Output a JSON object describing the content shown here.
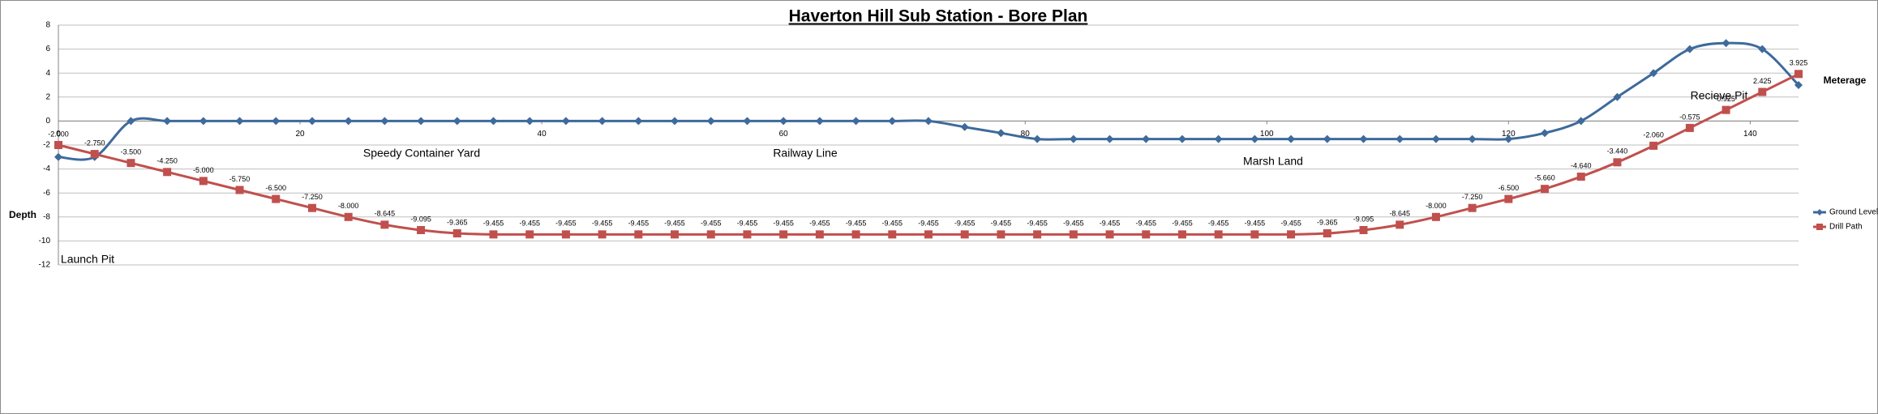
{
  "chart_data": {
    "type": "line",
    "title": "Haverton Hill Sub Station - Bore Plan",
    "y_label": "Depth",
    "x_label": "Meterage",
    "annotations": [
      "Speedy Container Yard",
      "Railway Line",
      "Marsh Land",
      "Recieve Pit",
      "Launch Pit"
    ],
    "x": [
      0,
      3,
      6,
      9,
      12,
      15,
      18,
      21,
      24,
      27,
      30,
      33,
      36,
      39,
      42,
      45,
      48,
      51,
      54,
      57,
      60,
      63,
      66,
      69,
      72,
      75,
      78,
      81,
      84,
      87,
      90,
      93,
      96,
      99,
      102,
      105,
      108,
      111,
      114,
      117,
      120,
      123,
      126,
      129,
      132,
      135,
      138,
      141,
      144
    ],
    "series": [
      {
        "name": "Ground Level",
        "color": "#3e6a9c",
        "marker": "diamond",
        "values": [
          -3,
          -3,
          0,
          0,
          0,
          0,
          0,
          0,
          0,
          0,
          0,
          0,
          0,
          0,
          0,
          0,
          0,
          0,
          0,
          0,
          0,
          0,
          0,
          0,
          0,
          -0.5,
          -1,
          -1.5,
          -1.5,
          -1.5,
          -1.5,
          -1.5,
          -1.5,
          -1.5,
          -1.5,
          -1.5,
          -1.5,
          -1.5,
          -1.5,
          -1.5,
          -1.5,
          -1,
          0,
          2,
          4,
          6,
          6.5,
          6,
          3
        ]
      },
      {
        "name": "Drill Path",
        "color": "#c0504d",
        "marker": "square",
        "values": [
          -2,
          -2.75,
          -3.5,
          -4.25,
          -5,
          -5.75,
          -6.5,
          -7.25,
          -8,
          -8.645,
          -9.095,
          -9.365,
          -9.455,
          -9.455,
          -9.455,
          -9.455,
          -9.455,
          -9.455,
          -9.455,
          -9.455,
          -9.455,
          -9.455,
          -9.455,
          -9.455,
          -9.455,
          -9.455,
          -9.455,
          -9.455,
          -9.455,
          -9.455,
          -9.455,
          -9.455,
          -9.455,
          -9.455,
          -9.455,
          -9.365,
          -9.095,
          -8.645,
          -8,
          -7.25,
          -6.5,
          -5.66,
          -4.64,
          -3.44,
          -2.06,
          -0.575,
          0.925,
          2.425,
          3.925
        ],
        "value_labels": [
          "-2.000",
          "-2.750",
          "-3.500",
          "-4.250",
          "-5.000",
          "-5.750",
          "-6.500",
          "-7.250",
          "-8.000",
          "-8.645",
          "-9.095",
          "-9.365",
          "-9.455",
          "-9.455",
          "-9.455",
          "-9.455",
          "-9.455",
          "-9.455",
          "-9.455",
          "-9.455",
          "-9.455",
          "-9.455",
          "-9.455",
          "-9.455",
          "-9.455",
          "-9.455",
          "-9.455",
          "-9.455",
          "-9.455",
          "-9.455",
          "-9.455",
          "-9.455",
          "-9.455",
          "-9.455",
          "-9.455",
          "-9.365",
          "-9.095",
          "-8.645",
          "-8.000",
          "-7.250",
          "-6.500",
          "-5.660",
          "-4.640",
          "-3.440",
          "-2.060",
          "-0.575",
          "0.925",
          "2.425",
          "3.925"
        ]
      }
    ],
    "xlim": [
      0,
      144
    ],
    "xticks": [
      0,
      20,
      40,
      60,
      80,
      100,
      120,
      140
    ],
    "ylim": [
      -12,
      8
    ],
    "yticks": [
      -12,
      -10,
      -8,
      -6,
      -4,
      -2,
      0,
      2,
      4,
      6,
      8
    ],
    "grid": true,
    "legend": "right",
    "smooth": true
  }
}
